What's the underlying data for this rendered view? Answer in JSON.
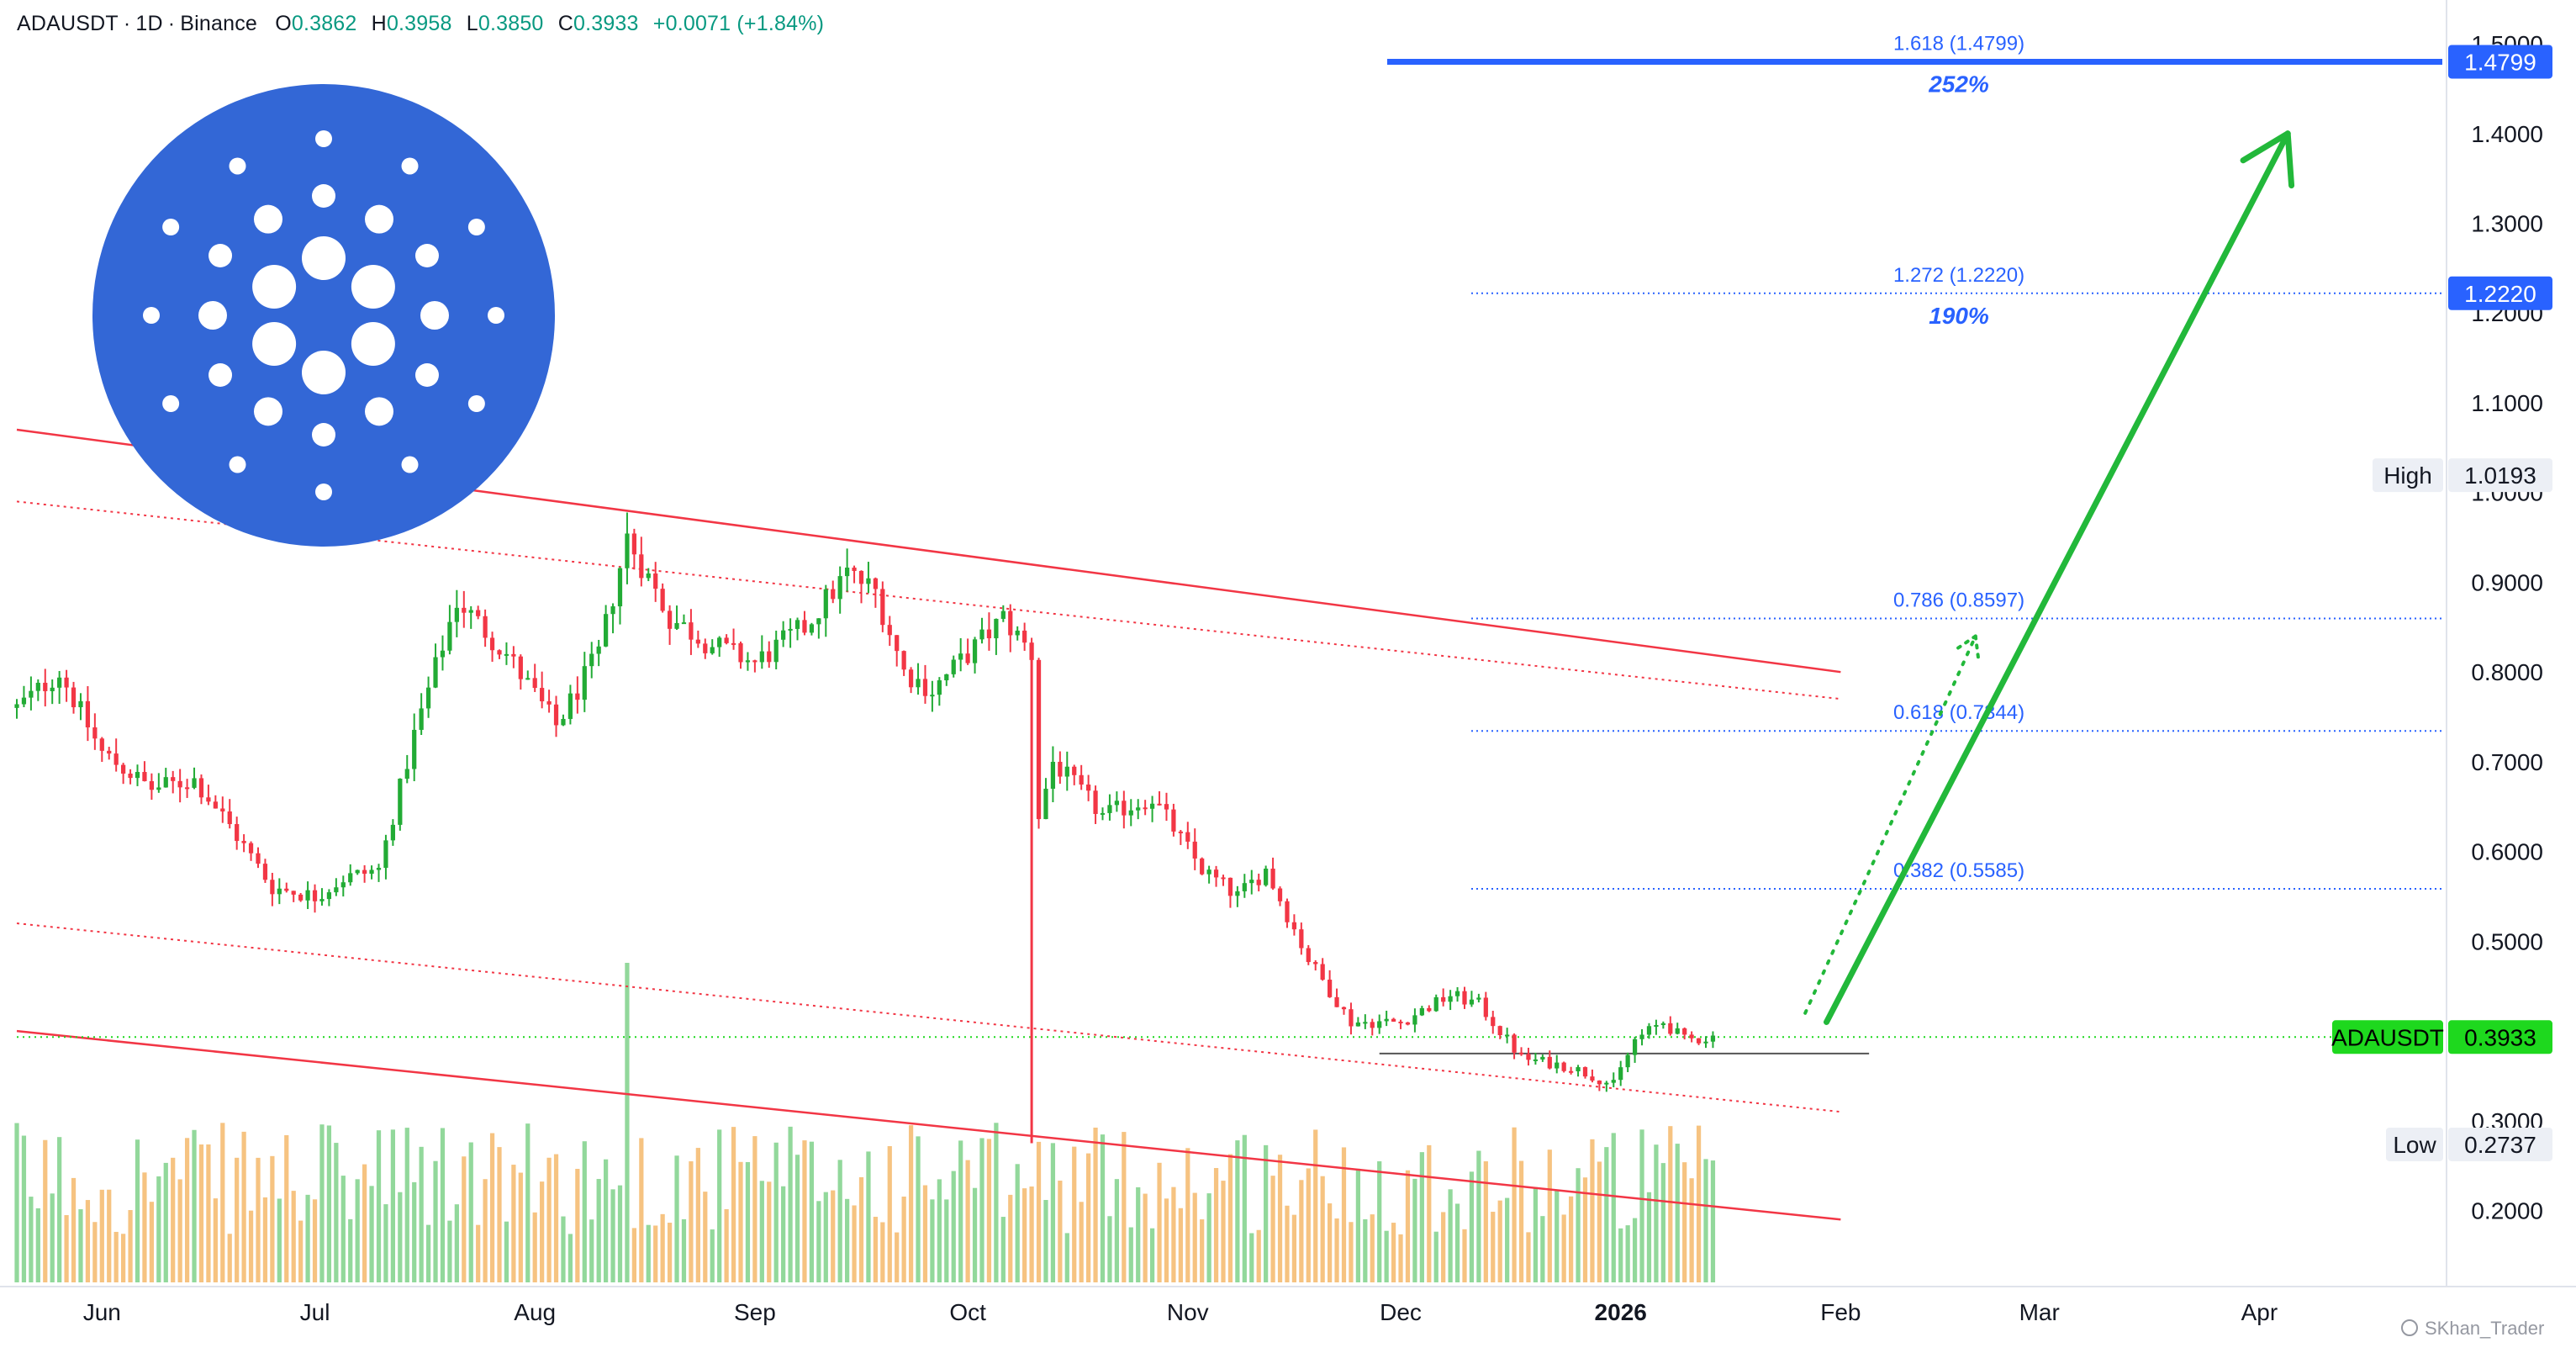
{
  "header": {
    "symbol": "ADAUSDT",
    "interval": "1D",
    "exchange": "Binance",
    "open_label": "O",
    "open": "0.3862",
    "high_label": "H",
    "high": "0.3958",
    "low_label": "L",
    "low": "0.3850",
    "close_label": "C",
    "close": "0.3933",
    "change": "+0.0071 (+1.84%)"
  },
  "colors": {
    "up": "#22ab35",
    "down": "#f23645",
    "fib": "#2962ff",
    "channel": "#f23645",
    "arrow": "#22b83a",
    "logo": "#3367d6",
    "last_price": "#1ed81e"
  },
  "logo": {
    "icon": "cardano-logo-icon"
  },
  "chart_data": {
    "type": "candlestick",
    "symbol": "ADAUSDT",
    "interval": "1D",
    "y_axis": {
      "ticks": [
        "1.5000",
        "1.4000",
        "1.3000",
        "1.2000",
        "1.1000",
        "1.0000",
        "0.9000",
        "0.8000",
        "0.7000",
        "0.6000",
        "0.5000",
        "0.3000",
        "0.2000"
      ],
      "tick_values": [
        1.5,
        1.4,
        1.3,
        1.2,
        1.1,
        1.0,
        0.9,
        0.8,
        0.7,
        0.6,
        0.5,
        0.3,
        0.2
      ],
      "range": [
        0.12,
        1.53
      ]
    },
    "x_axis": {
      "ticks": [
        "Jun",
        "Jul",
        "Aug",
        "Sep",
        "Oct",
        "Nov",
        "Dec",
        "2026",
        "Feb",
        "Mar",
        "Apr"
      ],
      "tick_dates": [
        "2025-06-01",
        "2025-07-01",
        "2025-08-01",
        "2025-09-01",
        "2025-10-01",
        "2025-11-01",
        "2025-12-01",
        "2026-01-01",
        "2026-02-01",
        "2026-03-01",
        "2026-04-01"
      ],
      "bold": [
        "2026"
      ],
      "range": [
        "2025-05-20",
        "2026-04-25"
      ]
    },
    "price_path": [
      [
        "2025-05-20",
        0.76
      ],
      [
        "2025-05-26",
        0.8
      ],
      [
        "2025-06-01",
        0.71
      ],
      [
        "2025-06-08",
        0.67
      ],
      [
        "2025-06-14",
        0.68
      ],
      [
        "2025-06-18",
        0.64
      ],
      [
        "2025-06-25",
        0.56
      ],
      [
        "2025-07-01",
        0.55
      ],
      [
        "2025-07-05",
        0.57
      ],
      [
        "2025-07-10",
        0.58
      ],
      [
        "2025-07-15",
        0.73
      ],
      [
        "2025-07-21",
        0.88
      ],
      [
        "2025-07-28",
        0.82
      ],
      [
        "2025-08-04",
        0.74
      ],
      [
        "2025-08-10",
        0.82
      ],
      [
        "2025-08-14",
        0.95
      ],
      [
        "2025-08-20",
        0.86
      ],
      [
        "2025-08-26",
        0.83
      ],
      [
        "2025-09-01",
        0.81
      ],
      [
        "2025-09-08",
        0.85
      ],
      [
        "2025-09-14",
        0.91
      ],
      [
        "2025-09-18",
        0.89
      ],
      [
        "2025-09-22",
        0.8
      ],
      [
        "2025-09-26",
        0.78
      ],
      [
        "2025-10-01",
        0.82
      ],
      [
        "2025-10-06",
        0.86
      ],
      [
        "2025-10-10",
        0.82
      ],
      [
        "2025-10-11",
        0.64
      ],
      [
        "2025-10-13",
        0.7
      ],
      [
        "2025-10-20",
        0.64
      ],
      [
        "2025-10-27",
        0.66
      ],
      [
        "2025-11-03",
        0.58
      ],
      [
        "2025-11-08",
        0.55
      ],
      [
        "2025-11-12",
        0.58
      ],
      [
        "2025-11-18",
        0.48
      ],
      [
        "2025-11-24",
        0.41
      ],
      [
        "2025-12-01",
        0.41
      ],
      [
        "2025-12-08",
        0.44
      ],
      [
        "2025-12-12",
        0.43
      ],
      [
        "2025-12-18",
        0.37
      ],
      [
        "2025-12-25",
        0.36
      ],
      [
        "2025-12-31",
        0.34
      ],
      [
        "2026-01-03",
        0.39
      ],
      [
        "2026-01-07",
        0.41
      ],
      [
        "2026-01-10",
        0.39
      ],
      [
        "2026-01-14",
        0.3933
      ]
    ],
    "volume_spikes": [
      [
        "2025-08-14",
        1.0
      ],
      [
        "2025-10-10",
        0.3
      ],
      [
        "2025-11-22",
        0.2
      ]
    ],
    "fib_levels": [
      {
        "ratio": "1.618",
        "price": 1.4799,
        "label": "1.618 (1.4799)",
        "percent": "252%"
      },
      {
        "ratio": "1.272",
        "price": 1.222,
        "label": "1.272 (1.2220)",
        "percent": "190%"
      },
      {
        "ratio": "0.786",
        "price": 0.8597,
        "label": "0.786 (0.8597)"
      },
      {
        "ratio": "0.618",
        "price": 0.7344,
        "label": "0.618 (0.7344)"
      },
      {
        "ratio": "0.382",
        "price": 0.5585,
        "label": "0.382 (0.5585)"
      }
    ],
    "price_tags": [
      {
        "value": "1.4799",
        "price": 1.4799,
        "style": "fib"
      },
      {
        "value": "1.2220",
        "price": 1.222,
        "style": "fib"
      },
      {
        "label": "High",
        "value": "1.0193",
        "price": 1.0193,
        "style": "stat"
      },
      {
        "label": "ADAUSDT",
        "value": "0.3933",
        "price": 0.3933,
        "style": "last"
      },
      {
        "label": "Low",
        "value": "0.2737",
        "price": 0.2737,
        "style": "stat"
      }
    ],
    "channel": {
      "upper": [
        [
          "2025-05-20",
          1.07
        ],
        [
          "2026-02-01",
          0.8
        ]
      ],
      "upper_mid": [
        [
          "2025-05-20",
          0.99
        ],
        [
          "2026-02-01",
          0.77
        ]
      ],
      "lower_mid": [
        [
          "2025-05-20",
          0.52
        ],
        [
          "2026-02-01",
          0.31
        ]
      ],
      "lower": [
        [
          "2025-05-20",
          0.4
        ],
        [
          "2026-02-01",
          0.19
        ]
      ]
    },
    "support_line": {
      "price": 0.375,
      "from": "2025-11-28",
      "to": "2026-02-05"
    },
    "projection": {
      "solid_arrow": {
        "from": [
          "2026-01-30",
          0.41
        ],
        "to": [
          "2026-04-05",
          1.4
        ]
      },
      "dotted_arrow": {
        "from": [
          "2026-01-27",
          0.42
        ],
        "to": [
          "2026-02-20",
          0.84
        ]
      }
    }
  },
  "footer": {
    "watermark": "SKhan_Trader",
    "watermark_icon": "tradingview-icon"
  }
}
